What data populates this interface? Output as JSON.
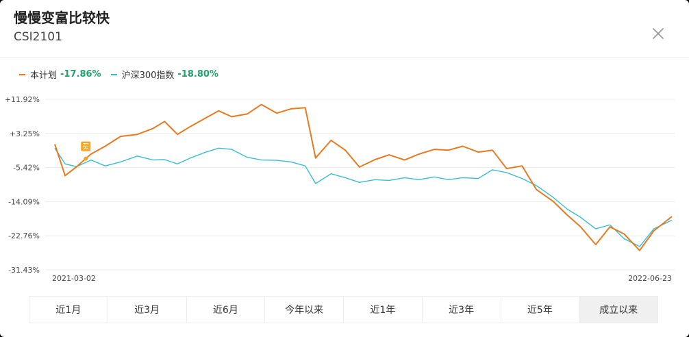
{
  "header": {
    "title": "慢慢变富比较快",
    "subtitle": "CSI2101"
  },
  "legend": [
    {
      "name": "本计划",
      "value": "-17.86%",
      "color": "#e8791f"
    },
    {
      "name": "沪深300指数",
      "value": "-18.80%",
      "color": "#37bcd1"
    }
  ],
  "buy_marker_label": "买",
  "tabs": [
    {
      "label": "近1月"
    },
    {
      "label": "近3月"
    },
    {
      "label": "近6月"
    },
    {
      "label": "今年以来"
    },
    {
      "label": "近1年"
    },
    {
      "label": "近3年"
    },
    {
      "label": "近5年"
    },
    {
      "label": "成立以来",
      "active": true
    }
  ],
  "colors": {
    "plan": "#e8791f",
    "index": "#37bcd1",
    "positive": "#20a26c",
    "buy": "#f5a623"
  },
  "chart_data": {
    "type": "line",
    "y_tick_labels": [
      "+11.92%",
      "+3.25%",
      "-5.42%",
      "-14.09%",
      "-22.76%",
      "-31.43%"
    ],
    "ylim": [
      -31.43,
      11.92
    ],
    "x_tick_labels": [
      "2021-03-02",
      "2022-06-23"
    ],
    "xlim": [
      "2021-03-02",
      "2022-06-23"
    ],
    "grid": "horizontal",
    "series": [
      {
        "name": "本计划",
        "color": "#e8791f",
        "points": [
          [
            "2021-03-02",
            0.5
          ],
          [
            "2021-03-10",
            -7.5
          ],
          [
            "2021-03-19",
            -5.2
          ],
          [
            "2021-03-30",
            -2.0
          ],
          [
            "2021-04-10",
            0.0
          ],
          [
            "2021-04-22",
            2.5
          ],
          [
            "2021-05-05",
            3.0
          ],
          [
            "2021-05-17",
            4.5
          ],
          [
            "2021-05-26",
            6.3
          ],
          [
            "2021-06-05",
            3.0
          ],
          [
            "2021-06-15",
            5.0
          ],
          [
            "2021-06-27",
            7.2
          ],
          [
            "2021-07-07",
            9.0
          ],
          [
            "2021-07-17",
            7.5
          ],
          [
            "2021-07-29",
            8.2
          ],
          [
            "2021-08-09",
            10.6
          ],
          [
            "2021-08-21",
            8.4
          ],
          [
            "2021-09-01",
            9.5
          ],
          [
            "2021-09-12",
            9.8
          ],
          [
            "2021-09-20",
            -3.0
          ],
          [
            "2021-10-02",
            1.5
          ],
          [
            "2021-10-13",
            -1.0
          ],
          [
            "2021-10-24",
            -5.3
          ],
          [
            "2021-11-05",
            -3.4
          ],
          [
            "2021-11-16",
            -2.2
          ],
          [
            "2021-11-28",
            -3.5
          ],
          [
            "2021-12-09",
            -2.0
          ],
          [
            "2021-12-21",
            -0.8
          ],
          [
            "2022-01-01",
            -1.0
          ],
          [
            "2022-01-12",
            0.0
          ],
          [
            "2022-01-24",
            -1.5
          ],
          [
            "2022-02-04",
            -1.0
          ],
          [
            "2022-02-15",
            -5.7
          ],
          [
            "2022-02-27",
            -5.0
          ],
          [
            "2022-03-10",
            -11.0
          ],
          [
            "2022-03-23",
            -14.0
          ],
          [
            "2022-04-03",
            -17.5
          ],
          [
            "2022-04-13",
            -20.4
          ],
          [
            "2022-04-25",
            -25.0
          ],
          [
            "2022-05-06",
            -20.5
          ],
          [
            "2022-05-17",
            -22.3
          ],
          [
            "2022-05-29",
            -26.5
          ],
          [
            "2022-06-09",
            -21.5
          ],
          [
            "2022-06-23",
            -17.86
          ]
        ]
      },
      {
        "name": "沪深300指数",
        "color": "#37bcd1",
        "points": [
          [
            "2021-03-02",
            -0.5
          ],
          [
            "2021-03-10",
            -4.5
          ],
          [
            "2021-03-19",
            -5.2
          ],
          [
            "2021-03-30",
            -3.5
          ],
          [
            "2021-04-10",
            -5.0
          ],
          [
            "2021-04-22",
            -4.0
          ],
          [
            "2021-05-05",
            -2.5
          ],
          [
            "2021-05-17",
            -3.5
          ],
          [
            "2021-05-26",
            -3.4
          ],
          [
            "2021-06-05",
            -4.5
          ],
          [
            "2021-06-15",
            -3.0
          ],
          [
            "2021-06-27",
            -1.5
          ],
          [
            "2021-07-07",
            -0.5
          ],
          [
            "2021-07-17",
            -0.8
          ],
          [
            "2021-07-29",
            -2.8
          ],
          [
            "2021-08-09",
            -3.5
          ],
          [
            "2021-08-21",
            -3.6
          ],
          [
            "2021-09-01",
            -4.0
          ],
          [
            "2021-09-12",
            -5.0
          ],
          [
            "2021-09-20",
            -9.5
          ],
          [
            "2021-10-02",
            -7.0
          ],
          [
            "2021-10-13",
            -8.0
          ],
          [
            "2021-10-24",
            -9.2
          ],
          [
            "2021-11-05",
            -8.5
          ],
          [
            "2021-11-16",
            -8.7
          ],
          [
            "2021-11-28",
            -8.0
          ],
          [
            "2021-12-09",
            -8.5
          ],
          [
            "2021-12-21",
            -7.8
          ],
          [
            "2022-01-01",
            -8.5
          ],
          [
            "2022-01-12",
            -8.0
          ],
          [
            "2022-01-24",
            -8.2
          ],
          [
            "2022-02-04",
            -6.0
          ],
          [
            "2022-02-15",
            -6.7
          ],
          [
            "2022-02-27",
            -8.2
          ],
          [
            "2022-03-10",
            -10.0
          ],
          [
            "2022-03-23",
            -13.0
          ],
          [
            "2022-04-03",
            -16.0
          ],
          [
            "2022-04-13",
            -18.0
          ],
          [
            "2022-04-25",
            -21.0
          ],
          [
            "2022-05-06",
            -20.0
          ],
          [
            "2022-05-17",
            -23.5
          ],
          [
            "2022-05-29",
            -25.5
          ],
          [
            "2022-06-09",
            -21.0
          ],
          [
            "2022-06-23",
            -18.8
          ]
        ]
      }
    ],
    "annotations": [
      {
        "label": "买",
        "date": "2021-03-26"
      }
    ]
  }
}
